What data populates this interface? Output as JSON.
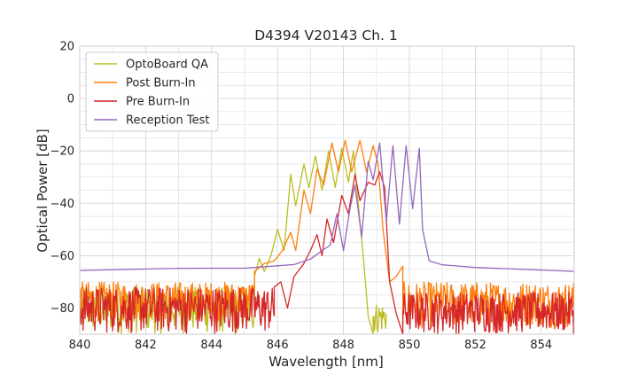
{
  "chart_data": {
    "type": "line",
    "title": "D4394 V20143 Ch. 1",
    "xlabel": "Wavelength [nm]",
    "ylabel": "Optical Power [dB]",
    "xlim": [
      840,
      855
    ],
    "ylim": [
      -90,
      20
    ],
    "xticks": [
      840,
      842,
      844,
      846,
      848,
      850,
      852,
      854
    ],
    "yticks": [
      -80,
      -60,
      -40,
      -20,
      0,
      20
    ],
    "xtick_labels": [
      "840",
      "842",
      "844",
      "846",
      "848",
      "850",
      "852",
      "854"
    ],
    "ytick_labels": [
      "−80",
      "−60",
      "−40",
      "−20",
      "0",
      "20"
    ],
    "grid": true,
    "legend_position": "top-left",
    "series": [
      {
        "name": "OptoBoard QA",
        "color": "#bcbd22",
        "noise_floor": [
          -90,
          -72
        ],
        "noise_floor_xrange": [
          840,
          845.3
        ],
        "points": [
          [
            845.3,
            -68
          ],
          [
            845.45,
            -61
          ],
          [
            845.6,
            -66
          ],
          [
            845.8,
            -60
          ],
          [
            846.0,
            -50
          ],
          [
            846.2,
            -58
          ],
          [
            846.4,
            -29
          ],
          [
            846.55,
            -41
          ],
          [
            846.8,
            -25
          ],
          [
            846.95,
            -34
          ],
          [
            847.15,
            -22
          ],
          [
            847.35,
            -35
          ],
          [
            847.55,
            -20
          ],
          [
            847.75,
            -34
          ],
          [
            847.95,
            -19
          ],
          [
            848.15,
            -32
          ],
          [
            848.3,
            -20
          ],
          [
            848.45,
            -40
          ],
          [
            848.6,
            -60
          ],
          [
            848.75,
            -83
          ],
          [
            848.9,
            -90
          ]
        ],
        "tail_floor": [
          -90,
          -78
        ],
        "tail_floor_xrange": [
          848.9,
          849.3
        ]
      },
      {
        "name": "Post Burn-In",
        "color": "#ff7f0e",
        "noise_floor": [
          -85,
          -70
        ],
        "noise_floor_xrange": [
          840,
          845.3
        ],
        "points": [
          [
            845.3,
            -66
          ],
          [
            845.6,
            -63
          ],
          [
            845.9,
            -62
          ],
          [
            846.15,
            -58
          ],
          [
            846.4,
            -51
          ],
          [
            846.55,
            -58
          ],
          [
            846.8,
            -35
          ],
          [
            847.0,
            -44
          ],
          [
            847.2,
            -27
          ],
          [
            847.4,
            -33
          ],
          [
            847.65,
            -17
          ],
          [
            847.85,
            -28
          ],
          [
            848.05,
            -16
          ],
          [
            848.25,
            -28
          ],
          [
            848.5,
            -16
          ],
          [
            848.7,
            -28
          ],
          [
            848.9,
            -18
          ],
          [
            849.05,
            -25
          ],
          [
            849.2,
            -50
          ],
          [
            849.4,
            -70
          ],
          [
            849.6,
            -68
          ],
          [
            849.8,
            -64
          ]
        ],
        "tail_floor": [
          -88,
          -70
        ],
        "tail_floor_xrange": [
          849.8,
          855
        ]
      },
      {
        "name": "Pre Burn-In",
        "color": "#d62728",
        "noise_floor": [
          -90,
          -72
        ],
        "noise_floor_xrange": [
          840,
          845.9
        ],
        "points": [
          [
            845.9,
            -72
          ],
          [
            846.1,
            -70
          ],
          [
            846.3,
            -80
          ],
          [
            846.5,
            -68
          ],
          [
            846.8,
            -63
          ],
          [
            847.0,
            -58
          ],
          [
            847.2,
            -52
          ],
          [
            847.35,
            -60
          ],
          [
            847.5,
            -46
          ],
          [
            847.7,
            -55
          ],
          [
            847.95,
            -37
          ],
          [
            848.15,
            -44
          ],
          [
            848.35,
            -29
          ],
          [
            848.5,
            -39
          ],
          [
            848.75,
            -32
          ],
          [
            848.95,
            -33
          ],
          [
            849.1,
            -28
          ],
          [
            849.25,
            -34
          ],
          [
            849.4,
            -70
          ],
          [
            849.6,
            -82
          ],
          [
            849.8,
            -90
          ]
        ],
        "tail_floor": [
          -90,
          -74
        ],
        "tail_floor_xrange": [
          849.8,
          855
        ]
      },
      {
        "name": "Reception Test",
        "color": "#9467bd",
        "baseline": [
          [
            840,
            -65.5
          ],
          [
            843,
            -65.0
          ],
          [
            845,
            -64.5
          ],
          [
            846.0,
            -64.0
          ],
          [
            846.5,
            -63.5
          ],
          [
            847.0,
            -61.5
          ],
          [
            847.3,
            -58.5
          ]
        ],
        "points": [
          [
            847.3,
            -58.5
          ],
          [
            847.6,
            -56
          ],
          [
            847.8,
            -44
          ],
          [
            848.0,
            -58
          ],
          [
            848.2,
            -42
          ],
          [
            848.35,
            -33
          ],
          [
            848.55,
            -53
          ],
          [
            848.75,
            -24
          ],
          [
            848.9,
            -31
          ],
          [
            849.1,
            -17
          ],
          [
            849.3,
            -47
          ],
          [
            849.5,
            -18
          ],
          [
            849.7,
            -48
          ],
          [
            849.9,
            -18
          ],
          [
            850.1,
            -42
          ],
          [
            850.3,
            -19
          ],
          [
            850.4,
            -50
          ],
          [
            850.6,
            -62
          ],
          [
            851.0,
            -63.5
          ],
          [
            852.0,
            -64.5
          ],
          [
            853.0,
            -65.0
          ],
          [
            854.0,
            -65.5
          ],
          [
            855.0,
            -66.0
          ]
        ]
      }
    ]
  }
}
